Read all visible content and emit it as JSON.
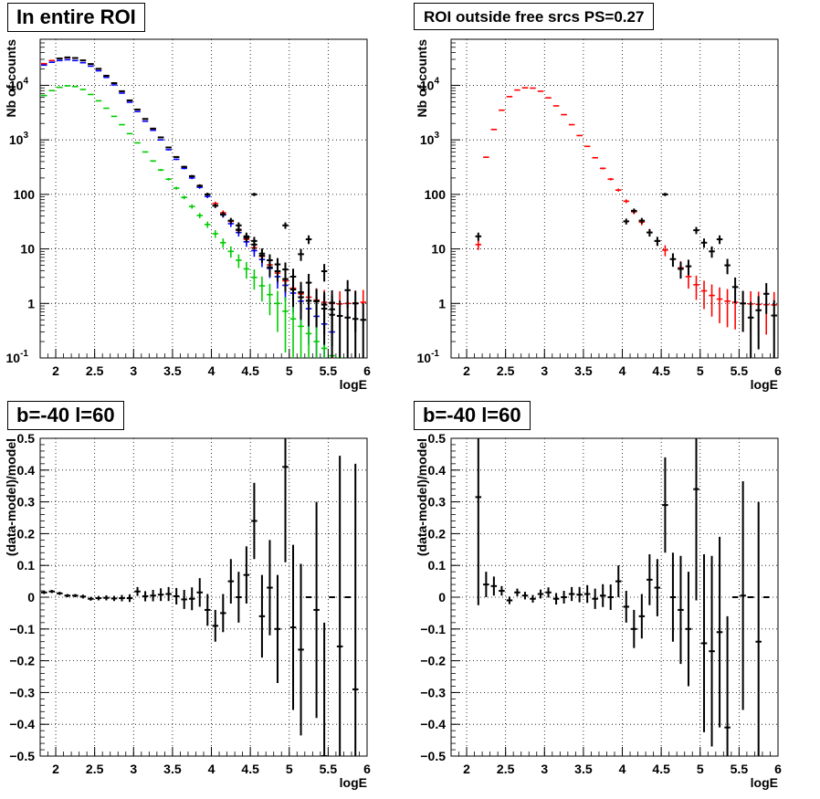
{
  "pads": [
    {
      "title": "In entire ROI",
      "xlabel": "logE",
      "ylabel": "Nb of counts",
      "chart_data": {
        "type": "scatter",
        "yscale": "log",
        "xlim": [
          1.8,
          6.0
        ],
        "ylim": [
          0.1,
          70000
        ],
        "grid": true,
        "xticks": [
          "2",
          "2.5",
          "3",
          "3.5",
          "4",
          "4.5",
          "5",
          "5.5",
          "6"
        ],
        "series": [
          {
            "color": "#ff0000",
            "x": [
              1.85,
              1.95,
              2.05,
              2.15,
              2.25,
              2.35,
              2.45,
              2.55,
              2.65,
              2.75,
              2.85,
              2.95,
              3.05,
              3.15,
              3.25,
              3.35,
              3.45,
              3.55,
              3.65,
              3.75,
              3.85,
              3.95,
              4.05,
              4.15,
              4.25,
              4.35,
              4.45,
              4.55,
              4.65,
              4.75,
              4.85,
              4.95,
              5.05,
              5.15,
              5.25,
              5.35,
              5.45,
              5.55,
              5.65,
              5.75,
              5.85,
              5.95
            ],
            "y": [
              25000,
              28500,
              31000,
              32000,
              31500,
              28500,
              24500,
              20000,
              15000,
              11000,
              7800,
              5300,
              3600,
              2400,
              1600,
              1100,
              720,
              480,
              320,
              215,
              145,
              100,
              68,
              46,
              32,
              22,
              15,
              10.5,
              7.3,
              5.1,
              3.6,
              2.6,
              1.9,
              1.5,
              1.3,
              1.15,
              1.05,
              1.0,
              0.98,
              1.0,
              1.02,
              1.05
            ]
          },
          {
            "color": "#0000ff",
            "x": [
              1.85,
              1.95,
              2.05,
              2.15,
              2.25,
              2.35,
              2.45,
              2.55,
              2.65,
              2.75,
              2.85,
              2.95,
              3.05,
              3.15,
              3.25,
              3.35,
              3.45,
              3.55,
              3.65,
              3.75,
              3.85,
              3.95,
              4.05,
              4.15,
              4.25,
              4.35,
              4.45,
              4.55,
              4.65,
              4.75,
              4.85,
              4.95,
              5.05,
              5.15,
              5.25,
              5.35,
              5.45,
              5.55
            ],
            "y": [
              23500,
              26500,
              28500,
              29500,
              28500,
              26000,
              22500,
              18500,
              14000,
              10200,
              7200,
              4900,
              3300,
              2200,
              1500,
              1000,
              660,
              440,
              300,
              200,
              135,
              92,
              62,
              42,
              29,
              20,
              13.5,
              9.3,
              6.4,
              4.4,
              3.1,
              2.15,
              1.55,
              1.1,
              0.8,
              0.58,
              0.42,
              0.3
            ]
          },
          {
            "color": "#00cc00",
            "x": [
              1.85,
              1.95,
              2.05,
              2.15,
              2.25,
              2.35,
              2.45,
              2.55,
              2.65,
              2.75,
              2.85,
              2.95,
              3.05,
              3.15,
              3.25,
              3.35,
              3.45,
              3.55,
              3.65,
              3.75,
              3.85,
              3.95,
              4.05,
              4.15,
              4.25,
              4.35,
              4.45,
              4.55,
              4.65,
              4.75,
              4.85,
              4.95,
              5.05,
              5.15,
              5.25,
              5.35,
              5.45,
              5.55,
              5.65
            ],
            "y": [
              6500,
              8000,
              9200,
              9800,
              9500,
              8400,
              6800,
              5200,
              3800,
              2700,
              1900,
              1300,
              880,
              600,
              410,
              280,
              190,
              130,
              88,
              60,
              41,
              28,
              19,
              13,
              9.0,
              6.2,
              4.3,
              3.0,
              2.1,
              1.45,
              1.0,
              0.72,
              0.52,
              0.38,
              0.28,
              0.2,
              0.15,
              0.11,
              0.085
            ]
          },
          {
            "color": "#000000",
            "x": [
              4.35,
              4.45,
              4.55,
              4.65,
              4.75,
              4.85,
              4.95,
              5.05,
              5.15,
              5.25,
              5.35,
              5.45,
              5.55
            ],
            "y": [
              27,
              17,
              14,
              8.2,
              6.2,
              5.2,
              4.2,
              3.1,
              1.6,
              2.4,
              1.1,
              0.95,
              0.78
            ]
          },
          {
            "color": "#000000",
            "x": [
              2.05,
              2.15,
              2.25,
              2.35,
              2.45,
              2.55,
              2.65,
              2.75,
              2.85,
              2.95,
              3.05,
              3.15,
              3.25,
              3.35,
              3.45,
              3.55,
              3.65,
              3.75,
              3.85,
              3.95,
              4.05,
              4.15,
              4.25,
              4.35,
              4.45,
              4.55,
              4.65,
              4.75,
              4.85,
              4.95,
              5.05,
              5.15,
              5.25,
              5.35,
              5.45,
              5.55,
              5.65,
              5.75,
              5.85,
              5.95
            ],
            "y": [
              31000,
              32500,
              31700,
              28700,
              24600,
              20100,
              15000,
              11000,
              7800,
              5300,
              3600,
              2420,
              1610,
              1110,
              725,
              485,
              320,
              216,
              144,
              100,
              62,
              43,
              33,
              22.5,
              16,
              12,
              7.5,
              4.6,
              3.9,
              2.8,
              1.8,
              1.3,
              1.12,
              1.1,
              0.8,
              0.62,
              0.59,
              0.55,
              0.52,
              0.5
            ]
          },
          {
            "color": "#000000",
            "x": [
              4.55,
              4.95,
              5.15,
              5.25,
              5.45,
              5.55,
              5.75,
              5.85
            ],
            "y": [
              100,
              27,
              8,
              15,
              3.9,
              1.03,
              1.75,
              1.0
            ]
          }
        ]
      }
    },
    {
      "title": "ROI outside free srcs PS=0.27",
      "xlabel": "logE",
      "ylabel": "Nb of counts",
      "chart_data": {
        "type": "scatter",
        "yscale": "log",
        "xlim": [
          1.8,
          6.0
        ],
        "ylim": [
          0.1,
          70000
        ],
        "grid": true,
        "xticks": [
          "2",
          "2.5",
          "3",
          "3.5",
          "4",
          "4.5",
          "5",
          "5.5",
          "6"
        ],
        "series": [
          {
            "color": "#ff0000",
            "x": [
              2.15,
              2.25,
              2.35,
              2.45,
              2.55,
              2.65,
              2.75,
              2.85,
              2.95,
              3.05,
              3.15,
              3.25,
              3.35,
              3.45,
              3.55,
              3.65,
              3.75,
              3.85,
              3.95,
              4.05,
              4.15,
              4.25,
              4.35,
              4.45,
              4.55,
              4.65,
              4.75,
              4.85,
              4.95,
              5.05,
              5.15,
              5.25,
              5.35,
              5.45,
              5.55,
              5.65,
              5.75,
              5.85,
              5.95
            ],
            "y": [
              12,
              480,
              1550,
              3500,
              6200,
              8200,
              9000,
              8900,
              7800,
              5900,
              4200,
              2900,
              1900,
              1200,
              760,
              470,
              300,
              190,
              120,
              75,
              48,
              31,
              20,
              14,
              9.5,
              6.5,
              4.5,
              3.1,
              2.2,
              1.7,
              1.4,
              1.2,
              1.1,
              1.05,
              1.0,
              0.98,
              0.96,
              0.95,
              0.94
            ]
          },
          {
            "color": "#000000",
            "x": [
              2.15,
              4.05,
              4.15,
              4.25,
              4.35,
              4.45,
              4.55,
              4.65,
              4.75,
              4.85,
              4.95,
              5.05,
              5.15,
              5.25,
              5.35,
              5.45,
              5.55,
              5.65,
              5.75,
              5.85,
              5.95
            ],
            "y": [
              17,
              32,
              50,
              33,
              20,
              14,
              100,
              6.5,
              4.3,
              4.8,
              22,
              13,
              9,
              15,
              5,
              2.0,
              1.0,
              0.55,
              0.75,
              1.5,
              0.6
            ]
          }
        ]
      }
    },
    {
      "title": "b=-40 l=60",
      "xlabel": "logE",
      "ylabel": "(data-model)/model",
      "chart_data": {
        "type": "scatter",
        "xlim": [
          1.8,
          6.0
        ],
        "ylim": [
          -0.5,
          0.5
        ],
        "grid": true,
        "xticks": [
          "2",
          "2.5",
          "3",
          "3.5",
          "4",
          "4.5",
          "5",
          "5.5",
          "6"
        ],
        "yticks": [
          "-0.5",
          "-0.4",
          "-0.3",
          "-0.2",
          "-0.1",
          "0",
          "0.1",
          "0.2",
          "0.3",
          "0.4",
          "0.5"
        ],
        "series": [
          {
            "color": "#000000",
            "x": [
              1.85,
              1.95,
              2.05,
              2.15,
              2.25,
              2.35,
              2.45,
              2.55,
              2.65,
              2.75,
              2.85,
              2.95,
              3.05,
              3.15,
              3.25,
              3.35,
              3.45,
              3.55,
              3.65,
              3.75,
              3.85,
              3.95,
              4.05,
              4.15,
              4.25,
              4.35,
              4.45,
              4.55,
              4.65,
              4.75,
              4.85,
              4.95,
              5.05,
              5.15,
              5.25,
              5.35,
              5.45,
              5.55,
              5.65,
              5.75,
              5.85
            ],
            "y": [
              0.015,
              0.018,
              0.012,
              0.005,
              0.005,
              0.002,
              -0.005,
              -0.003,
              -0.002,
              -0.004,
              -0.003,
              -0.003,
              0.018,
              0.003,
              0.005,
              0.008,
              0.01,
              0.003,
              -0.007,
              -0.005,
              0.015,
              -0.04,
              -0.09,
              -0.05,
              0.05,
              0.0,
              0.07,
              0.24,
              -0.06,
              0.03,
              -0.1,
              0.41,
              -0.095,
              -0.165,
              0.0,
              -0.04,
              -0.5,
              0.0,
              -0.155,
              0.0,
              -0.29
            ],
            "err": [
              0.005,
              0.005,
              0.005,
              0.005,
              0.005,
              0.006,
              0.006,
              0.007,
              0.008,
              0.008,
              0.01,
              0.012,
              0.014,
              0.016,
              0.018,
              0.02,
              0.022,
              0.026,
              0.03,
              0.036,
              0.045,
              0.05,
              0.05,
              0.06,
              0.07,
              0.08,
              0.09,
              0.12,
              0.13,
              0.15,
              0.17,
              0.3,
              0.26,
              0.27,
              0.0,
              0.34,
              0.42,
              0.0,
              0.6,
              0.0,
              0.71
            ]
          }
        ]
      }
    },
    {
      "title": "b=-40 l=60",
      "xlabel": "logE",
      "ylabel": "(data-model)/model",
      "chart_data": {
        "type": "scatter",
        "xlim": [
          1.8,
          6.0
        ],
        "ylim": [
          -0.5,
          0.5
        ],
        "grid": true,
        "xticks": [
          "2",
          "2.5",
          "3",
          "3.5",
          "4",
          "4.5",
          "5",
          "5.5",
          "6"
        ],
        "yticks": [
          "-0.5",
          "-0.4",
          "-0.3",
          "-0.2",
          "-0.1",
          "0",
          "0.1",
          "0.2",
          "0.3",
          "0.4",
          "0.5"
        ],
        "series": [
          {
            "color": "#000000",
            "x": [
              2.15,
              2.25,
              2.35,
              2.45,
              2.55,
              2.65,
              2.75,
              2.85,
              2.95,
              3.05,
              3.15,
              3.25,
              3.35,
              3.45,
              3.55,
              3.65,
              3.75,
              3.85,
              3.95,
              4.05,
              4.15,
              4.25,
              4.35,
              4.45,
              4.55,
              4.65,
              4.75,
              4.85,
              4.95,
              5.05,
              5.15,
              5.25,
              5.35,
              5.45,
              5.55,
              5.65,
              5.75,
              5.85
            ],
            "y": [
              0.315,
              0.04,
              0.035,
              0.02,
              -0.01,
              0.015,
              0.005,
              -0.005,
              0.01,
              0.015,
              -0.005,
              0.0,
              0.01,
              0.008,
              0.01,
              -0.005,
              0.005,
              0.0,
              0.05,
              -0.03,
              -0.1,
              -0.06,
              0.055,
              0.03,
              0.29,
              0.0,
              -0.04,
              -0.1,
              0.34,
              -0.145,
              -0.17,
              -0.11,
              -0.41,
              0.0,
              0.005,
              0.0,
              -0.14,
              0.0
            ],
            "err": [
              0.34,
              0.04,
              0.03,
              0.015,
              0.012,
              0.012,
              0.012,
              0.012,
              0.014,
              0.016,
              0.018,
              0.02,
              0.022,
              0.024,
              0.028,
              0.032,
              0.036,
              0.04,
              0.05,
              0.05,
              0.06,
              0.07,
              0.08,
              0.09,
              0.15,
              0.14,
              0.17,
              0.18,
              0.35,
              0.28,
              0.3,
              0.3,
              0.35,
              0.0,
              0.36,
              0.0,
              0.44,
              0.0
            ]
          }
        ]
      }
    }
  ]
}
